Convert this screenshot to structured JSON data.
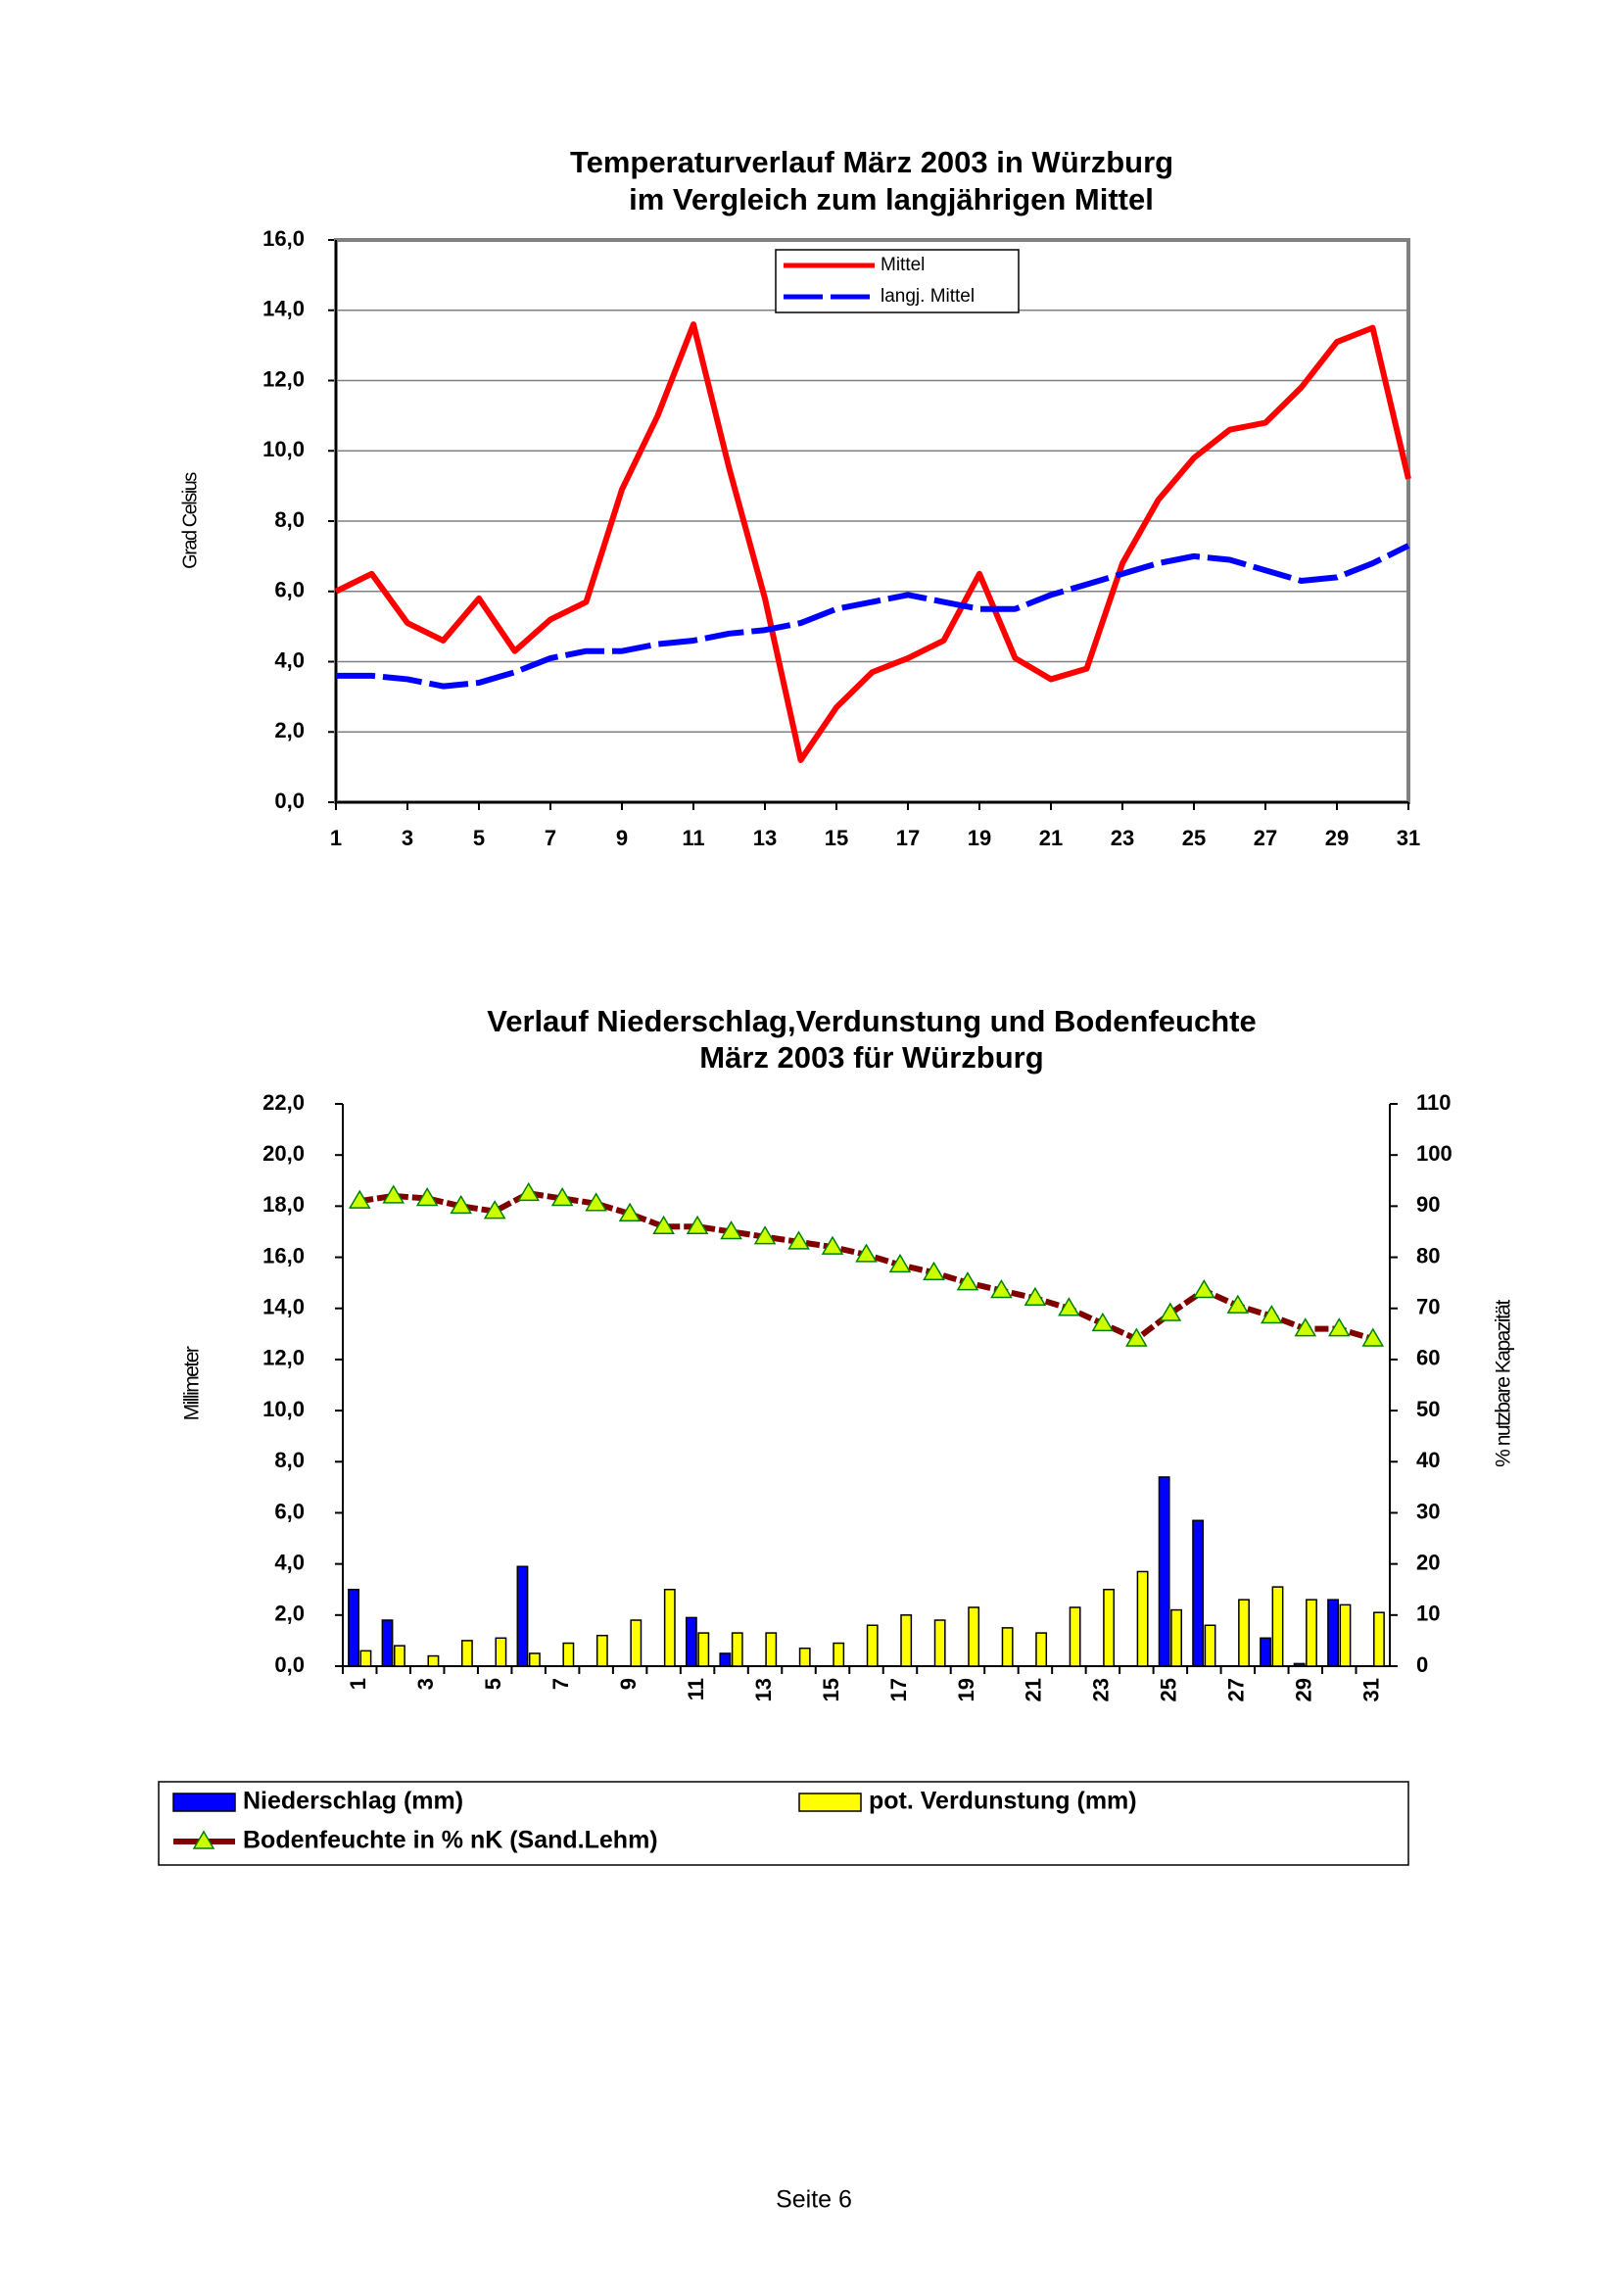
{
  "chart_data": [
    {
      "type": "line",
      "title": "Temperaturverlauf März 2003 in Würzburg",
      "subtitle": "im Vergleich zum langjährigen Mittel",
      "y_label": "Grad Celsius",
      "x": [
        1,
        2,
        3,
        4,
        5,
        6,
        7,
        8,
        9,
        10,
        11,
        12,
        13,
        14,
        15,
        16,
        17,
        18,
        19,
        20,
        21,
        22,
        23,
        24,
        25,
        26,
        27,
        28,
        29,
        30,
        31
      ],
      "xlim": [
        1,
        31
      ],
      "xticks": [
        1,
        3,
        5,
        7,
        9,
        11,
        13,
        15,
        17,
        19,
        21,
        23,
        25,
        27,
        29,
        31
      ],
      "ylim": [
        0,
        16
      ],
      "yticks": [
        {
          "value": 0,
          "label": "0,0"
        },
        {
          "value": 2,
          "label": "2,0"
        },
        {
          "value": 4,
          "label": "4,0"
        },
        {
          "value": 6,
          "label": "6,0"
        },
        {
          "value": 8,
          "label": "8,0"
        },
        {
          "value": 10,
          "label": "10,0"
        },
        {
          "value": 12,
          "label": "12,0"
        },
        {
          "value": 14,
          "label": "14,0"
        },
        {
          "value": 16,
          "label": "16,0"
        }
      ],
      "grid": true,
      "legend": "top",
      "series": [
        {
          "name": "Mittel",
          "color": "#ff0000",
          "style": "solid",
          "values": [
            6.0,
            6.5,
            5.1,
            4.6,
            5.8,
            4.3,
            5.2,
            5.7,
            8.9,
            11.0,
            13.6,
            9.5,
            5.8,
            1.2,
            2.7,
            3.7,
            4.1,
            4.6,
            6.5,
            4.1,
            3.5,
            3.8,
            6.8,
            8.6,
            9.8,
            10.6,
            10.8,
            11.8,
            13.1,
            13.5,
            9.2
          ]
        },
        {
          "name": "langj. Mittel",
          "color": "#0000ff",
          "style": "dashed",
          "values": [
            3.6,
            3.6,
            3.5,
            3.3,
            3.4,
            3.7,
            4.1,
            4.3,
            4.3,
            4.5,
            4.6,
            4.8,
            4.9,
            5.1,
            5.5,
            5.7,
            5.9,
            5.7,
            5.5,
            5.5,
            5.9,
            6.2,
            6.5,
            6.8,
            7.0,
            6.9,
            6.6,
            6.3,
            6.4,
            6.8,
            7.3
          ]
        }
      ]
    },
    {
      "type": "bar",
      "title": "Verlauf Niederschlag,Verdunstung und Bodenfeuchte",
      "subtitle": "März 2003 für Würzburg",
      "y_label": "Millimeter",
      "y2_label": "% nutzbare Kapazität",
      "categories": [
        "1",
        null,
        "3",
        null,
        "5",
        null,
        "7",
        null,
        "9",
        null,
        "11",
        null,
        "13",
        null,
        "15",
        null,
        "17",
        null,
        "19",
        null,
        "21",
        null,
        "23",
        null,
        "25",
        null,
        "27",
        null,
        "29",
        null,
        "31"
      ],
      "ylim": [
        0,
        22
      ],
      "yticks": [
        {
          "value": 0,
          "label": "0,0"
        },
        {
          "value": 2,
          "label": "2,0"
        },
        {
          "value": 4,
          "label": "4,0"
        },
        {
          "value": 6,
          "label": "6,0"
        },
        {
          "value": 8,
          "label": "8,0"
        },
        {
          "value": 10,
          "label": "10,0"
        },
        {
          "value": 12,
          "label": "12,0"
        },
        {
          "value": 14,
          "label": "14,0"
        },
        {
          "value": 16,
          "label": "16,0"
        },
        {
          "value": 18,
          "label": "18,0"
        },
        {
          "value": 20,
          "label": "20,0"
        },
        {
          "value": 22,
          "label": "22,0"
        }
      ],
      "y2lim": [
        0,
        110
      ],
      "y2ticks": [
        0,
        10,
        20,
        30,
        40,
        50,
        60,
        70,
        80,
        90,
        100,
        110
      ],
      "grid": false,
      "legend": "bottom",
      "series": [
        {
          "name": "Niederschlag (mm)",
          "color": "#0000ff",
          "values": [
            3.0,
            1.8,
            0,
            0,
            0,
            3.9,
            0,
            0,
            0,
            0,
            1.9,
            0.5,
            0,
            0,
            0,
            0,
            0,
            0,
            0,
            0,
            0,
            0,
            0,
            0,
            7.4,
            5.7,
            0,
            1.1,
            0.1,
            2.6,
            0
          ]
        },
        {
          "name": "pot. Verdunstung (mm)",
          "color": "#ffff00",
          "values": [
            0.6,
            0.8,
            0.4,
            1.0,
            1.1,
            0.5,
            0.9,
            1.2,
            1.8,
            3.0,
            1.3,
            1.3,
            1.3,
            0.7,
            0.9,
            1.6,
            2.0,
            1.8,
            2.3,
            1.5,
            1.3,
            2.3,
            3.0,
            3.7,
            2.2,
            1.6,
            2.6,
            3.1,
            2.6,
            2.4,
            2.1
          ]
        },
        {
          "name": "Bodenfeuchte in % nK (Sand.Lehm)",
          "color": "#800000",
          "marker_color": "#ccff00",
          "type": "line",
          "axis": "y2",
          "values": [
            91,
            92,
            91.5,
            90,
            89,
            92.5,
            91.5,
            90.5,
            88.5,
            86,
            86,
            85,
            84,
            83,
            82,
            80.5,
            78.5,
            77,
            75,
            73.5,
            72,
            70,
            67,
            64,
            69,
            73.5,
            70.5,
            68.5,
            66,
            66,
            64
          ]
        }
      ]
    }
  ],
  "footer": "Seite 6"
}
